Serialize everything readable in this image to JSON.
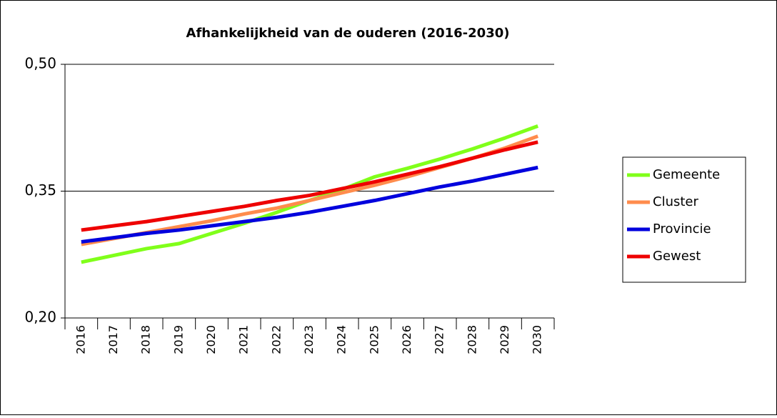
{
  "chart_data": {
    "type": "line",
    "title": "Afhankelijkheid van de ouderen (2016-2030)",
    "categories": [
      "2016",
      "2017",
      "2018",
      "2019",
      "2020",
      "2021",
      "2022",
      "2023",
      "2024",
      "2025",
      "2026",
      "2027",
      "2028",
      "2029",
      "2030"
    ],
    "series": [
      {
        "name": "Gemeente",
        "color": "#80ff1a",
        "values": [
          0.266,
          0.274,
          0.282,
          0.288,
          0.3,
          0.312,
          0.325,
          0.339,
          0.352,
          0.367,
          0.377,
          0.388,
          0.4,
          0.413,
          0.427
        ]
      },
      {
        "name": "Cluster",
        "color": "#ff8c4d",
        "values": [
          0.287,
          0.294,
          0.301,
          0.308,
          0.315,
          0.323,
          0.33,
          0.339,
          0.348,
          0.357,
          0.367,
          0.378,
          0.389,
          0.401,
          0.415
        ]
      },
      {
        "name": "Provincie",
        "color": "#0000dd",
        "values": [
          0.29,
          0.295,
          0.3,
          0.304,
          0.309,
          0.314,
          0.319,
          0.325,
          0.332,
          0.339,
          0.347,
          0.355,
          0.362,
          0.37,
          0.378
        ]
      },
      {
        "name": "Gewest",
        "color": "#ee0000",
        "values": [
          0.304,
          0.309,
          0.314,
          0.32,
          0.326,
          0.332,
          0.339,
          0.345,
          0.353,
          0.361,
          0.37,
          0.379,
          0.389,
          0.399,
          0.408
        ]
      }
    ],
    "ylim": [
      0.2,
      0.5
    ],
    "yticks": [
      {
        "value": 0.2,
        "label": "0,20"
      },
      {
        "value": 0.35,
        "label": "0,35"
      },
      {
        "value": 0.5,
        "label": "0,50"
      }
    ],
    "grid": true,
    "legend": "right"
  }
}
